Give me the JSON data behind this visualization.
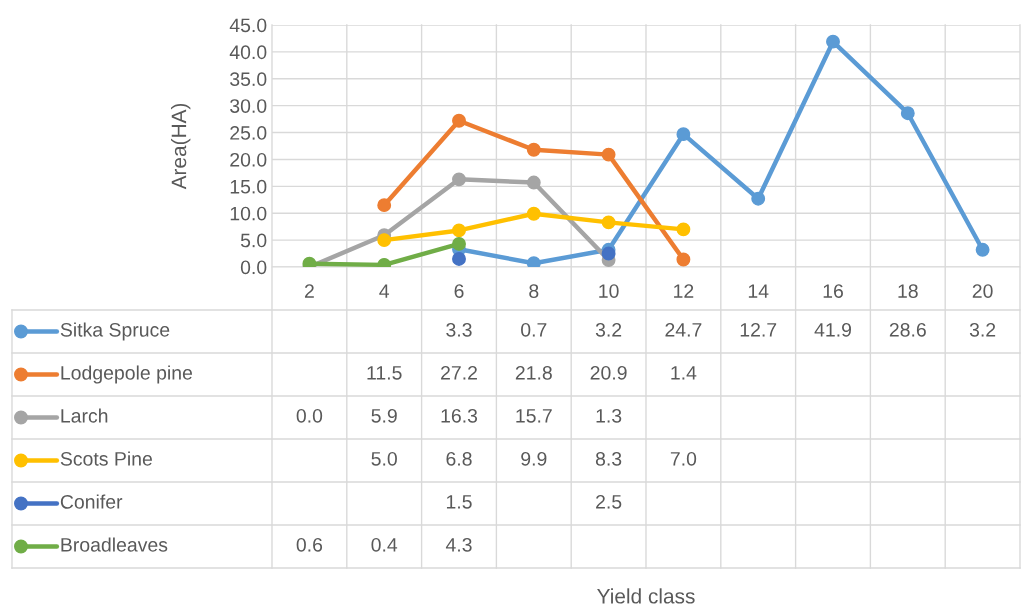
{
  "chart_data": {
    "type": "line",
    "annotations": [
      "Yield class"
    ],
    "ylabel": "Area(HA)",
    "categories": [
      "2",
      "4",
      "6",
      "8",
      "10",
      "12",
      "14",
      "16",
      "18",
      "20"
    ],
    "series": [
      {
        "name": "Sitka Spruce",
        "color": "#5b9bd5",
        "values": [
          null,
          null,
          3.3,
          0.7,
          3.2,
          24.7,
          12.7,
          41.9,
          28.6,
          3.2
        ],
        "value_labels": [
          null,
          null,
          "3.3",
          "0.7",
          "3.2",
          "24.7",
          "12.7",
          "41.9",
          "28.6",
          "3.2"
        ]
      },
      {
        "name": "Lodgepole pine",
        "color": "#ed7d31",
        "values": [
          null,
          11.5,
          27.2,
          21.8,
          20.9,
          1.4,
          null,
          null,
          null,
          null
        ],
        "value_labels": [
          null,
          "11.5",
          "27.2",
          "21.8",
          "20.9",
          "1.4",
          null,
          null,
          null,
          null
        ]
      },
      {
        "name": "Larch",
        "color": "#a5a5a5",
        "values": [
          0.0,
          5.9,
          16.3,
          15.7,
          1.3,
          null,
          null,
          null,
          null,
          null
        ],
        "value_labels": [
          "0.0",
          "5.9",
          "16.3",
          "15.7",
          "1.3",
          null,
          null,
          null,
          null,
          null
        ]
      },
      {
        "name": "Scots Pine",
        "color": "#ffc000",
        "values": [
          null,
          5.0,
          6.8,
          9.9,
          8.3,
          7.0,
          null,
          null,
          null,
          null
        ],
        "value_labels": [
          null,
          "5.0",
          "6.8",
          "9.9",
          "8.3",
          "7.0",
          null,
          null,
          null,
          null
        ]
      },
      {
        "name": "Conifer",
        "color": "#4472c4",
        "type": "scatter",
        "values": [
          null,
          null,
          1.5,
          null,
          2.5,
          null,
          null,
          null,
          null,
          null
        ],
        "value_labels": [
          null,
          null,
          "1.5",
          null,
          "2.5",
          null,
          null,
          null,
          null,
          null
        ]
      },
      {
        "name": "Broadleaves",
        "color": "#70ad47",
        "values": [
          0.6,
          0.4,
          4.3,
          null,
          null,
          null,
          null,
          null,
          null,
          null
        ],
        "value_labels": [
          "0.6",
          "0.4",
          "4.3",
          null,
          null,
          null,
          null,
          null,
          null,
          null
        ]
      }
    ],
    "ylim": [
      0,
      45
    ],
    "yticks": [
      {
        "value": 0,
        "label": "0.0"
      },
      {
        "value": 5,
        "label": "5.0"
      },
      {
        "value": 10,
        "label": "10.0"
      },
      {
        "value": 15,
        "label": "15.0"
      },
      {
        "value": 20,
        "label": "20.0"
      },
      {
        "value": 25,
        "label": "25.0"
      },
      {
        "value": 30,
        "label": "30.0"
      },
      {
        "value": 35,
        "label": "35.0"
      },
      {
        "value": 40,
        "label": "40.0"
      },
      {
        "value": 45,
        "label": "45.0"
      }
    ],
    "grid": "y",
    "marker": "circle",
    "line_style": "solid",
    "legend": "bottom"
  }
}
